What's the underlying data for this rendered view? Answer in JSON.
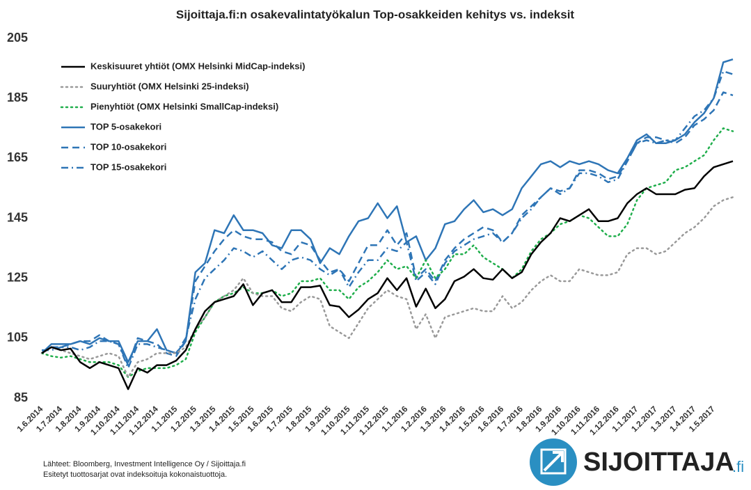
{
  "chart_data": {
    "type": "line",
    "title": "Sijoittaja.fi:n osakevalintatyökalun Top-osakkeiden kehitys vs. indeksit",
    "categories": [
      "1.6.2014",
      null,
      "1.7.2014",
      null,
      "1.8.2014",
      null,
      "1.9.2014",
      null,
      "1.10.2014",
      null,
      "1.11.2014",
      null,
      "1.12.2014",
      null,
      "1.1.2015",
      null,
      "1.2.2015",
      null,
      "1.3.2015",
      null,
      "1.4.2015",
      null,
      "1.5.2015",
      null,
      "1.6.2015",
      null,
      "1.7.2015",
      null,
      "1.8.2015",
      null,
      "1.9.2015",
      null,
      "1.10.2015",
      null,
      "1.11.2015",
      null,
      "1.12.2015",
      null,
      "1.1.2016",
      null,
      "1.2.2016",
      null,
      "1.3.2016",
      null,
      "1.4.2016",
      null,
      "1.5.2016",
      null,
      "1.6.2016",
      null,
      "1.7.2016",
      null,
      "1.8.2016",
      null,
      "1.9.2016",
      null,
      "1.10.2016",
      null,
      "1.11.2016",
      null,
      "1.12.2016",
      null,
      "1.1.2017",
      null,
      "1.2.2017",
      null,
      "1.3.2017",
      null,
      "1.4.2017",
      null,
      "1.5.2017",
      null,
      null
    ],
    "series": [
      {
        "name": "Keskisuuret yhtiöt (OMX Helsinki MidCap-indeksi)",
        "color": "#000000",
        "dash": "solid",
        "width": 2.5,
        "values": [
          100,
          102,
          101,
          101.5,
          97,
          95,
          97,
          96,
          95,
          88,
          95,
          93.5,
          96,
          96,
          97.5,
          101,
          108,
          114,
          117,
          118,
          119,
          123,
          116,
          120,
          121,
          117,
          117,
          122,
          122,
          122.5,
          116,
          115.5,
          112,
          114.5,
          118,
          120,
          125,
          121,
          125,
          115.5,
          121.5,
          115,
          118,
          124,
          125.5,
          128,
          125,
          124.5,
          128,
          125,
          127,
          133,
          137,
          140,
          145,
          144,
          146,
          148,
          144,
          144,
          145,
          150,
          153,
          155,
          153,
          153,
          153,
          154.5,
          155,
          159,
          162,
          163,
          164
        ]
      },
      {
        "name": "Suuryhtiöt (OMX Helsinki 25-indeksi)",
        "color": "#999999",
        "dash": "dotted",
        "width": 2.5,
        "values": [
          100,
          102,
          101,
          100,
          99,
          98,
          99,
          100,
          99,
          92,
          97,
          98,
          100,
          100,
          100,
          102,
          108,
          112,
          117,
          119,
          121,
          125,
          120,
          119,
          119,
          115,
          114,
          117,
          119,
          118,
          109,
          107,
          105,
          110,
          115,
          118,
          121,
          119,
          118,
          108,
          113,
          105,
          112,
          113,
          114,
          115,
          114,
          114,
          119,
          115,
          117,
          121,
          124,
          126,
          124,
          124,
          128,
          127,
          126,
          126,
          127,
          133,
          135,
          135,
          133,
          134,
          137,
          140,
          142,
          145,
          149,
          151,
          152
        ]
      },
      {
        "name": "Pienyhtiöt (OMX Helsinki SmallCap-indeksi)",
        "color": "#1fae4b",
        "dash": "dotted",
        "width": 2.5,
        "values": [
          100,
          99,
          98.5,
          99,
          98,
          97,
          97,
          97,
          96,
          92,
          94,
          95,
          95,
          95,
          96,
          98,
          107,
          112,
          117,
          119,
          120,
          122,
          120,
          120,
          121,
          119,
          120,
          124,
          124,
          125,
          121,
          121,
          118,
          122,
          124,
          127,
          131,
          128,
          129,
          125,
          131,
          125,
          128,
          133,
          133,
          136,
          132,
          130,
          128,
          125,
          128,
          134,
          138,
          140,
          143,
          144,
          146,
          145,
          142,
          139,
          139,
          143,
          151,
          155,
          156,
          157,
          161,
          162,
          164,
          166,
          171,
          175,
          174
        ]
      },
      {
        "name": "TOP 5-osakekori",
        "color": "#2e75b6",
        "dash": "solid",
        "width": 2.5,
        "values": [
          100,
          103,
          103,
          103,
          104,
          103,
          105,
          104,
          104,
          97,
          104,
          104,
          108,
          101,
          100,
          104,
          127,
          130,
          141,
          140,
          146,
          141,
          141,
          140,
          136,
          135,
          141,
          141,
          138,
          130,
          135,
          133,
          139,
          144,
          145,
          150,
          145,
          149,
          137,
          139,
          131,
          135,
          143,
          144,
          148,
          151,
          147,
          148,
          146,
          148,
          155,
          159,
          163,
          164,
          162,
          164,
          163,
          164,
          163,
          161,
          160,
          165,
          171,
          173,
          170,
          170,
          171,
          173,
          177,
          180,
          185,
          197,
          198
        ]
      },
      {
        "name": "TOP 10-osakekori",
        "color": "#2e75b6",
        "dash": "dashed",
        "width": 2.5,
        "values": [
          100,
          102,
          102,
          103,
          104,
          104,
          106,
          104,
          103,
          96,
          105,
          104,
          103,
          100,
          99,
          104,
          124,
          129,
          134,
          138,
          141,
          139,
          138,
          138,
          137,
          134,
          133,
          137,
          136,
          131,
          127,
          128,
          124,
          130,
          136,
          136,
          141,
          136,
          140,
          125,
          128,
          124,
          131,
          135,
          138,
          140,
          142,
          141,
          137,
          140,
          146,
          149,
          152,
          155,
          154,
          155,
          161,
          161,
          160,
          158,
          159,
          164,
          170,
          172,
          172,
          171,
          170,
          172,
          176,
          178,
          181,
          187,
          186
        ]
      },
      {
        "name": "TOP 15-osakekori",
        "color": "#2e75b6",
        "dash": "dashdot",
        "width": 2.5,
        "values": [
          101,
          101,
          102,
          102,
          101,
          102,
          104,
          104,
          103,
          95,
          103,
          103,
          102,
          101,
          100,
          105,
          118,
          125,
          128,
          131,
          135,
          134,
          132,
          134,
          131,
          128,
          131,
          132,
          131,
          128,
          126,
          128,
          122,
          127,
          131,
          131,
          135,
          134,
          137,
          124,
          127,
          123,
          130,
          134,
          136,
          138,
          139,
          140,
          137,
          140,
          145,
          148,
          152,
          155,
          153,
          155,
          160,
          160,
          159,
          157,
          158,
          164,
          170,
          171,
          170,
          171,
          171,
          175,
          179,
          181,
          185,
          194,
          193
        ]
      }
    ],
    "ylim": [
      85,
      205
    ],
    "yticks": [
      85,
      105,
      125,
      145,
      165,
      185,
      205
    ],
    "grid": false,
    "legend": "upper left"
  },
  "footer": {
    "source": "Lähteet: Bloomberg, Investment Intelligence Oy / Sijoittaja.fi",
    "note": "Esitetyt tuottosarjat ovat indeksoituja kokonaistuottoja.",
    "logo": "SIJOITTAJA",
    "logo_suffix": ".fi"
  }
}
